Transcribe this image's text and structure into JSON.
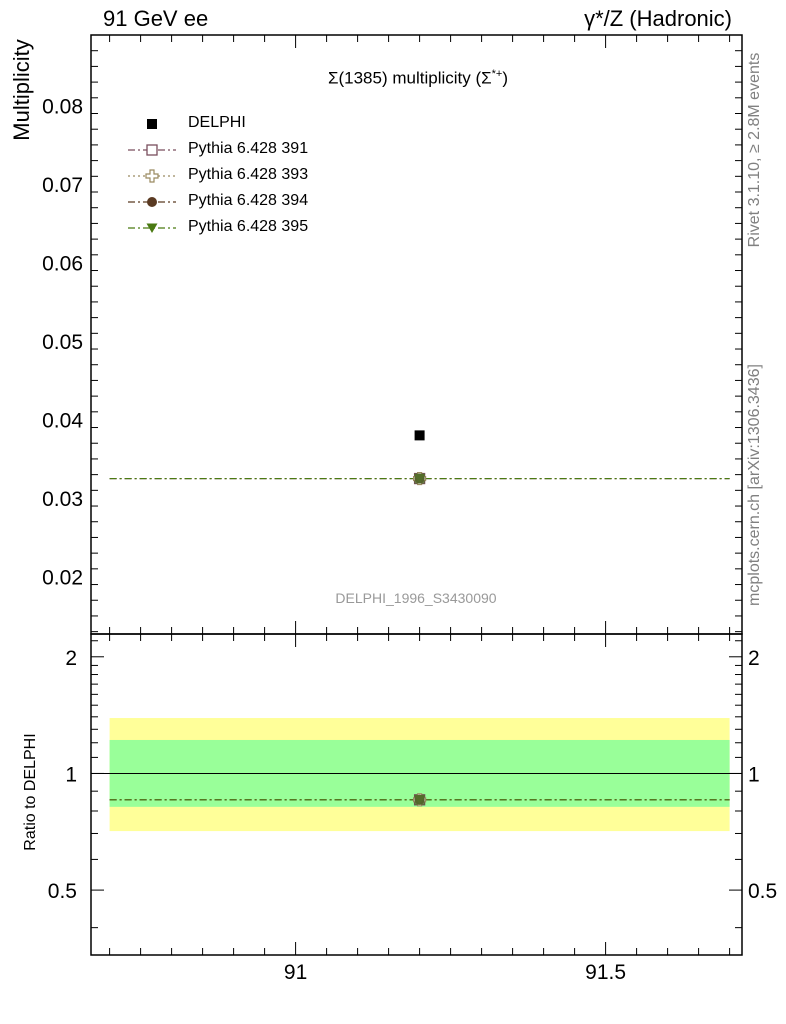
{
  "header": {
    "left": "91 GeV ee",
    "right": "γ*/Z (Hadronic)"
  },
  "side_labels": {
    "rivet": "Rivet 3.1.10, ≥ 2.8M events",
    "mcplots": "mcplots.cern.ch [arXiv:1306.3436]"
  },
  "chart_data": {
    "type": "scatter",
    "title_main": "Σ(1385) multiplicity (Σ",
    "title_sup": "*+",
    "title_close": ")",
    "analysis_id": "DELPHI_1996_S3430090",
    "ylabel": "Multiplicity",
    "ratio_ylabel": "Ratio to DELPHI",
    "xlim": [
      90.67,
      91.72
    ],
    "ylim": [
      0.0127,
      0.089
    ],
    "ratio_ylim": [
      0.34,
      2.29
    ],
    "x_ticks": [
      "91",
      "91.5"
    ],
    "x_tick_values": [
      91,
      91.5
    ],
    "y_ticks": [
      "0.02",
      "0.03",
      "0.04",
      "0.05",
      "0.06",
      "0.07",
      "0.08"
    ],
    "y_tick_values": [
      0.02,
      0.03,
      0.04,
      0.05,
      0.06,
      0.07,
      0.08
    ],
    "ratio_ticks": [
      "0.5",
      "1",
      "2"
    ],
    "ratio_tick_values": [
      0.5,
      1,
      2
    ],
    "ratio_log": true,
    "bin": [
      90.7,
      91.7
    ],
    "data": {
      "name": "DELPHI",
      "x": 91.2,
      "y": 0.038,
      "yerr": 0.0,
      "color": "#000000"
    },
    "ratio_bands": {
      "inner": [
        0.82,
        1.22
      ],
      "outer": [
        0.71,
        1.39
      ],
      "inner_color": "#99ff99",
      "outer_color": "#ffff99"
    },
    "series": [
      {
        "name": "Pythia 6.428 391",
        "x": 91.2,
        "y": 0.0325,
        "ratio": 0.855,
        "color": "#7a4e5e",
        "marker": "open-square",
        "dash": "dashdot"
      },
      {
        "name": "Pythia 6.428 393",
        "x": 91.2,
        "y": 0.0325,
        "ratio": 0.855,
        "color": "#9a8a60",
        "marker": "open-cross",
        "dash": "dot"
      },
      {
        "name": "Pythia 6.428 394",
        "x": 91.2,
        "y": 0.0325,
        "ratio": 0.855,
        "color": "#5a3a22",
        "marker": "filled-circle",
        "dash": "dashdot"
      },
      {
        "name": "Pythia 6.428 395",
        "x": 91.2,
        "y": 0.0325,
        "ratio": 0.855,
        "color": "#4a7a12",
        "marker": "filled-triangle-down",
        "dash": "dashdot"
      }
    ]
  }
}
